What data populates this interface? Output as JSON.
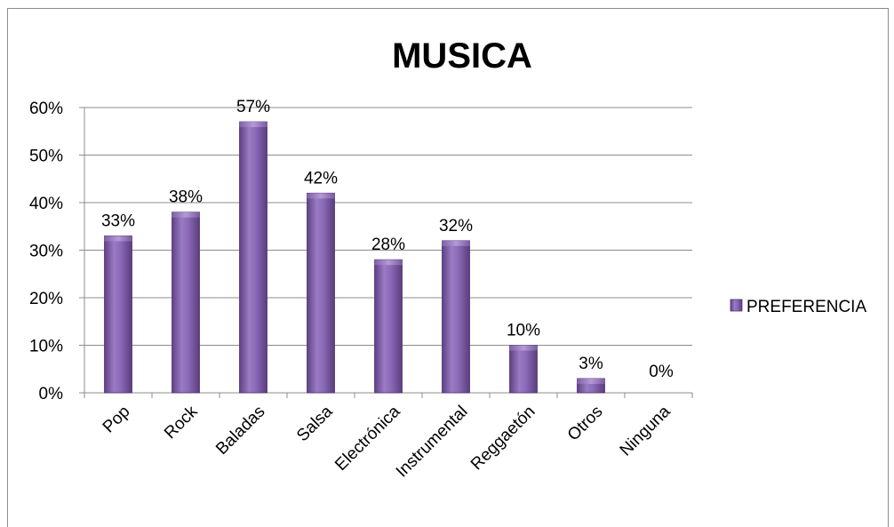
{
  "chart_data": {
    "type": "bar",
    "title": "MUSICA",
    "xlabel": "",
    "ylabel": "",
    "categories": [
      "Pop",
      "Rock",
      "Baladas",
      "Salsa",
      "Electrónica",
      "Instrumental",
      "Reggaetón",
      "Otros",
      "Ninguna"
    ],
    "series": [
      {
        "name": "PREFERENCIA",
        "values": [
          0.33,
          0.38,
          0.57,
          0.42,
          0.28,
          0.32,
          0.1,
          0.03,
          0.0
        ],
        "data_labels": [
          "33%",
          "38%",
          "57%",
          "42%",
          "28%",
          "32%",
          "10%",
          "3%",
          "0%"
        ],
        "color": "#7f5aa8"
      }
    ],
    "ylim": [
      0,
      0.6
    ],
    "yticks": [
      0,
      0.1,
      0.2,
      0.3,
      0.4,
      0.5,
      0.6
    ],
    "ytick_labels": [
      "0%",
      "10%",
      "20%",
      "30%",
      "40%",
      "50%",
      "60%"
    ],
    "grid": true,
    "legend_position": "right",
    "colors": {
      "bar_fill": "#7f5aa8",
      "bar_dark": "#5b3d80",
      "bar_light": "#a98bcc",
      "grid": "#8c8c8c"
    }
  }
}
